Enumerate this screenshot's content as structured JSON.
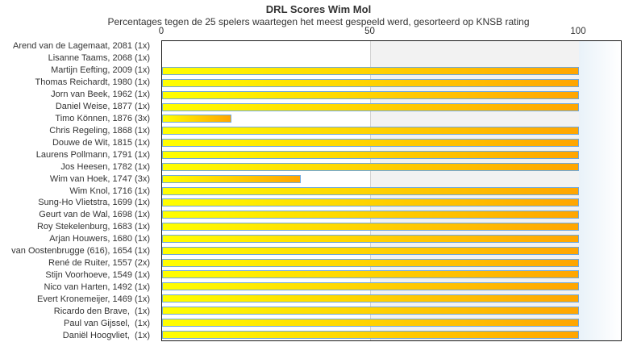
{
  "header": {
    "title": "DRL Scores Wim Mol",
    "subtitle": "Percentages tegen de 25 spelers waartegen het meest gespeeld werd, gesorteerd op KNSB rating"
  },
  "colors": {
    "bar_gradient_start": "#ffff00",
    "bar_gradient_end": "#ffa500",
    "bar_border": "#6fa8dc",
    "band_50_100": "#f2f2f2",
    "band_over_100": "#e9f2f9",
    "gridline": "#d4d4d4",
    "plot_border": "#1a1a1a",
    "text": "#333333",
    "background": "#ffffff"
  },
  "chart_data": {
    "type": "bar",
    "orientation": "horizontal",
    "title": "DRL Scores Wim Mol",
    "subtitle": "Percentages tegen de 25 spelers waartegen het meest gespeeld werd, gesorteerd op KNSB rating",
    "xlabel": "",
    "ylabel": "",
    "xlim": [
      0,
      110.4
    ],
    "xticks": [
      0,
      50,
      100
    ],
    "legend": false,
    "grid": "vertical-line-at-50; shaded band 50-100; tinted band beyond 100",
    "categories": [
      "Arend van de Lagemaat, 2081 (1x)",
      "Lisanne Taams, 2068 (1x)",
      "Martijn Eefting, 2009 (1x)",
      "Thomas Reichardt, 1980 (1x)",
      "Jorn van Beek, 1962 (1x)",
      "Daniel Weise, 1877 (1x)",
      "Timo Können, 1876 (3x)",
      "Chris Regeling, 1868 (1x)",
      "Douwe de Wit, 1815 (1x)",
      "Laurens Pollmann, 1791 (1x)",
      "Jos Heesen, 1782 (1x)",
      "Wim van Hoek, 1747 (3x)",
      "Wim Knol, 1716 (1x)",
      "Sung-Ho Vlietstra, 1699 (1x)",
      "Geurt van de Wal, 1698 (1x)",
      "Roy Stekelenburg, 1683 (1x)",
      "Arjan Houwers, 1680 (1x)",
      "van Oostenbrugge (616), 1654 (1x)",
      "René de Ruiter, 1557 (2x)",
      "Stijn Voorhoeve, 1549 (1x)",
      "Nico van Harten, 1492 (1x)",
      "Evert Kronemeijer, 1469 (1x)",
      "Ricardo den Brave,  (1x)",
      "Paul van Gijssel,  (1x)",
      "Daniël Hoogvliet,  (1x)"
    ],
    "values": [
      0,
      0,
      100,
      100,
      100,
      100,
      16.7,
      100,
      100,
      100,
      100,
      33.3,
      100,
      100,
      100,
      100,
      100,
      100,
      100,
      100,
      100,
      100,
      100,
      100,
      100
    ]
  }
}
